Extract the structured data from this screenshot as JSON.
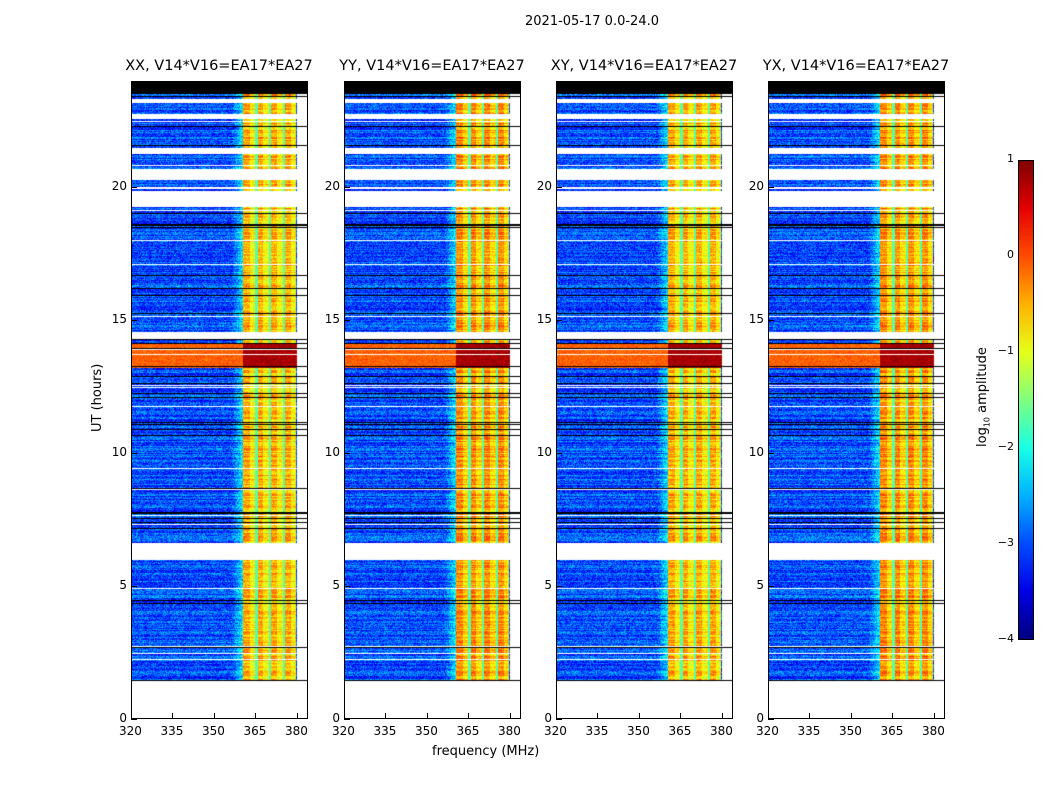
{
  "figure_title": "2021-05-17 0.0-24.0",
  "chart_data": {
    "type": "heatmap",
    "title": "2021-05-17 0.0-24.0",
    "xlabel": "frequency (MHz)",
    "ylabel": "UT (hours)",
    "xlim": [
      320,
      384
    ],
    "ylim": [
      0,
      24
    ],
    "xticks": [
      "320",
      "335",
      "350",
      "365",
      "380"
    ],
    "xtick_values": [
      320,
      335,
      350,
      365,
      380
    ],
    "yticks": [
      "0",
      "5",
      "10",
      "15",
      "20"
    ],
    "ytick_values": [
      0,
      5,
      10,
      15,
      20
    ],
    "panels": [
      {
        "title": "XX, V14*V16=EA17*EA27"
      },
      {
        "title": "YY, V14*V16=EA17*EA27"
      },
      {
        "title": "XY, V14*V16=EA17*EA27"
      },
      {
        "title": "YX, V14*V16=EA17*EA27"
      }
    ],
    "data_time_range": [
      1.4,
      24
    ],
    "background_log_amplitude": -3,
    "bright_band_mhz": [
      360.5,
      380
    ],
    "bright_band_log_amplitude": -0.6,
    "band_gap_channels_mhz": [
      365.5,
      370.5,
      375.5
    ],
    "strong_rfi_time_range": [
      13.2,
      14.1
    ],
    "strong_rfi_log_amplitude": 0.8,
    "flagged_time_ranges": [
      [
        6.0,
        6.6
      ],
      [
        14.3,
        14.55
      ],
      [
        19.3,
        19.9
      ],
      [
        20.3,
        20.7
      ],
      [
        21.3,
        21.5
      ],
      [
        22.6,
        22.8
      ],
      [
        23.2,
        23.35
      ]
    ],
    "colorbar": {
      "label": "log₁₀ amplitude",
      "label_main": "log",
      "label_sub": "10",
      "label_rest": " amplitude",
      "range": [
        -4,
        1
      ],
      "ticks": [
        "1",
        "0",
        "−1",
        "−2",
        "−3",
        "−4"
      ],
      "tick_values": [
        1,
        0,
        -1,
        -2,
        -3,
        -4
      ],
      "colormap": "jet"
    }
  }
}
